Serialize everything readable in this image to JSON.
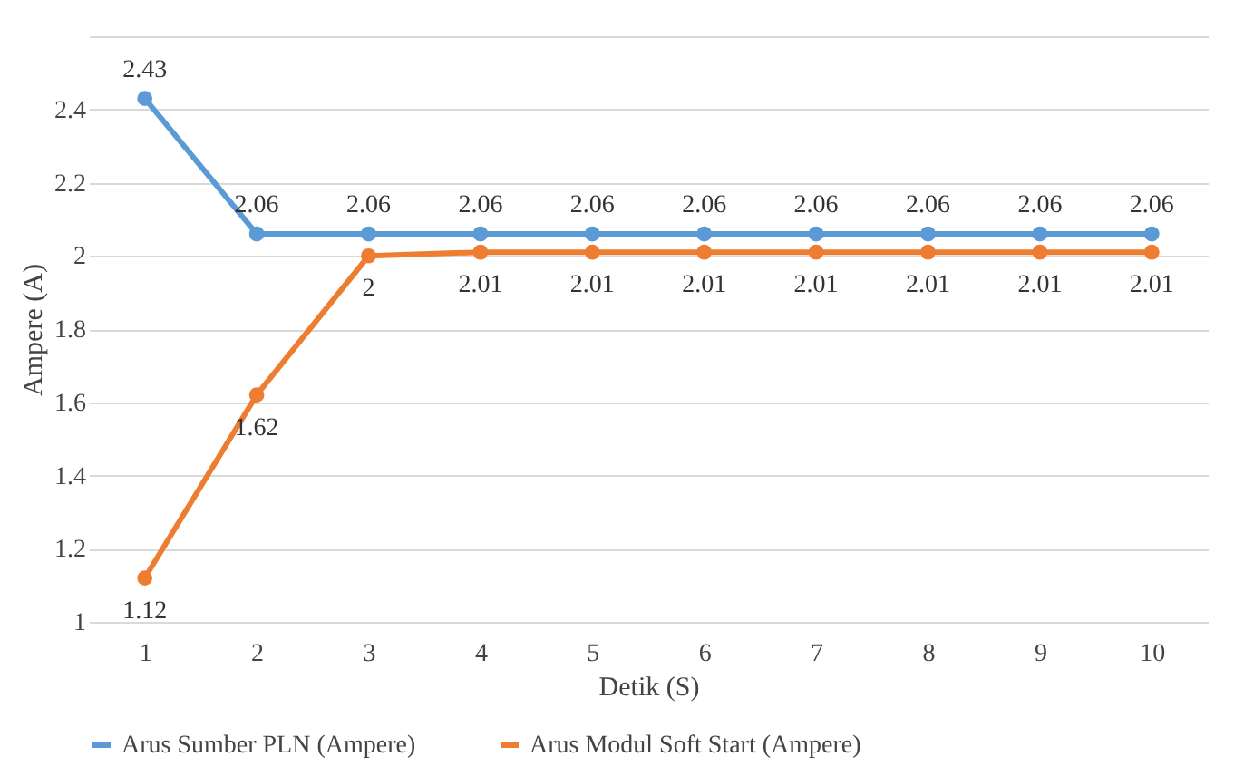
{
  "chart_data": {
    "type": "line",
    "xlabel": "Detik (S)",
    "ylabel": "Ampere (A)",
    "categories": [
      "1",
      "2",
      "3",
      "4",
      "5",
      "6",
      "7",
      "8",
      "9",
      "10"
    ],
    "series": [
      {
        "name": "Arus Sumber PLN (Ampere)",
        "color": "#5b9bd5",
        "values": [
          2.43,
          2.06,
          2.06,
          2.06,
          2.06,
          2.06,
          2.06,
          2.06,
          2.06,
          2.06
        ]
      },
      {
        "name": "Arus Modul Soft Start (Ampere)",
        "color": "#ed7d31",
        "values": [
          1.12,
          1.62,
          2,
          2.01,
          2.01,
          2.01,
          2.01,
          2.01,
          2.01,
          2.01
        ]
      }
    ],
    "ylim": [
      1,
      2.6
    ],
    "yticks": [
      1,
      1.2,
      1.4,
      1.6,
      1.8,
      2,
      2.2,
      2.4,
      {
        "value": 2.6,
        "label": null
      }
    ],
    "grid": "y",
    "legend": "bottom",
    "marker": "circle",
    "line_style": "solid",
    "data_labels": true
  }
}
